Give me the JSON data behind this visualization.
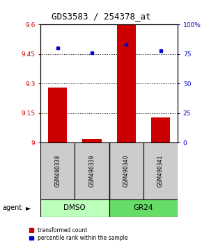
{
  "title": "GDS3583 / 254378_at",
  "samples": [
    "GSM490338",
    "GSM490339",
    "GSM490340",
    "GSM490341"
  ],
  "red_values": [
    9.28,
    9.02,
    9.6,
    9.13
  ],
  "blue_values": [
    80,
    76,
    83,
    78
  ],
  "ylim_left": [
    9.0,
    9.6
  ],
  "ylim_right": [
    0,
    100
  ],
  "yticks_left": [
    9.0,
    9.15,
    9.3,
    9.45,
    9.6
  ],
  "yticks_right": [
    0,
    25,
    50,
    75,
    100
  ],
  "ytick_labels_left": [
    "9",
    "9.15",
    "9.3",
    "9.45",
    "9.6"
  ],
  "ytick_labels_right": [
    "0",
    "25",
    "50",
    "75",
    "100%"
  ],
  "hlines": [
    9.15,
    9.3,
    9.45
  ],
  "bar_color": "#cc0000",
  "dot_color": "#0000cc",
  "bar_width": 0.55,
  "sample_box_color": "#cccccc",
  "dmso_color": "#bbffbb",
  "gr24_color": "#66dd66",
  "title_fontsize": 9
}
